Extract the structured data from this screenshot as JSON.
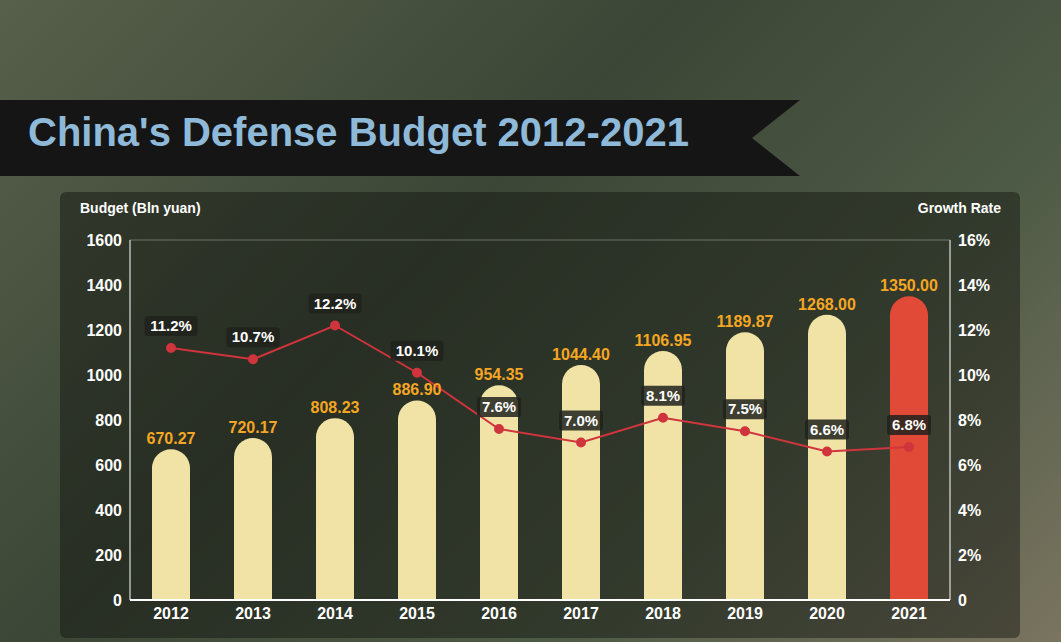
{
  "chart_data": {
    "type": "bar",
    "title": "China's Defense Budget 2012-2021",
    "y_label": "Budget (Bln yuan)",
    "y2_label": "Growth Rate",
    "categories": [
      "2012",
      "2013",
      "2014",
      "2015",
      "2016",
      "2017",
      "2018",
      "2019",
      "2020",
      "2021"
    ],
    "series": [
      {
        "type": "bar",
        "colors": [
          "#f1e3a6",
          "#f1e3a6",
          "#f1e3a6",
          "#f1e3a6",
          "#f1e3a6",
          "#f1e3a6",
          "#f1e3a6",
          "#f1e3a6",
          "#f1e3a6",
          "#e04a36"
        ],
        "values": [
          670.27,
          720.17,
          808.23,
          886.9,
          954.35,
          1044.4,
          1106.95,
          1189.87,
          1268.0,
          1350.0
        ],
        "value_labels": [
          "670.27",
          "720.17",
          "808.23",
          "886.90",
          "954.35",
          "1044.40",
          "1106.95",
          "1189.87",
          "1268.00",
          "1350.00"
        ]
      },
      {
        "type": "line",
        "axis": "y2",
        "color": "#d0343c",
        "marker": "circle",
        "line_style": "solid",
        "values": [
          11.2,
          10.7,
          12.2,
          10.1,
          7.6,
          7.0,
          8.1,
          7.5,
          6.6,
          6.8
        ],
        "value_labels": [
          "11.2%",
          "10.7%",
          "12.2%",
          "10.1%",
          "7.6%",
          "7.0%",
          "8.1%",
          "7.5%",
          "6.6%",
          "6.8%"
        ]
      }
    ],
    "ylim": [
      0,
      1600
    ],
    "yticks": [
      0,
      200,
      400,
      600,
      800,
      1000,
      1200,
      1400,
      1600
    ],
    "y2lim": [
      0,
      16
    ],
    "y2ticks": [
      0,
      {
        "value": 2,
        "label": "2%"
      },
      {
        "value": 4,
        "label": "4%"
      },
      {
        "value": 6,
        "label": "6%"
      },
      {
        "value": 8,
        "label": "8%"
      },
      {
        "value": 10,
        "label": "10%"
      },
      {
        "value": 12,
        "label": "12%"
      },
      {
        "value": 14,
        "label": "14%"
      },
      {
        "value": 16,
        "label": "16%"
      }
    ],
    "grid": true,
    "data_labels": true
  }
}
